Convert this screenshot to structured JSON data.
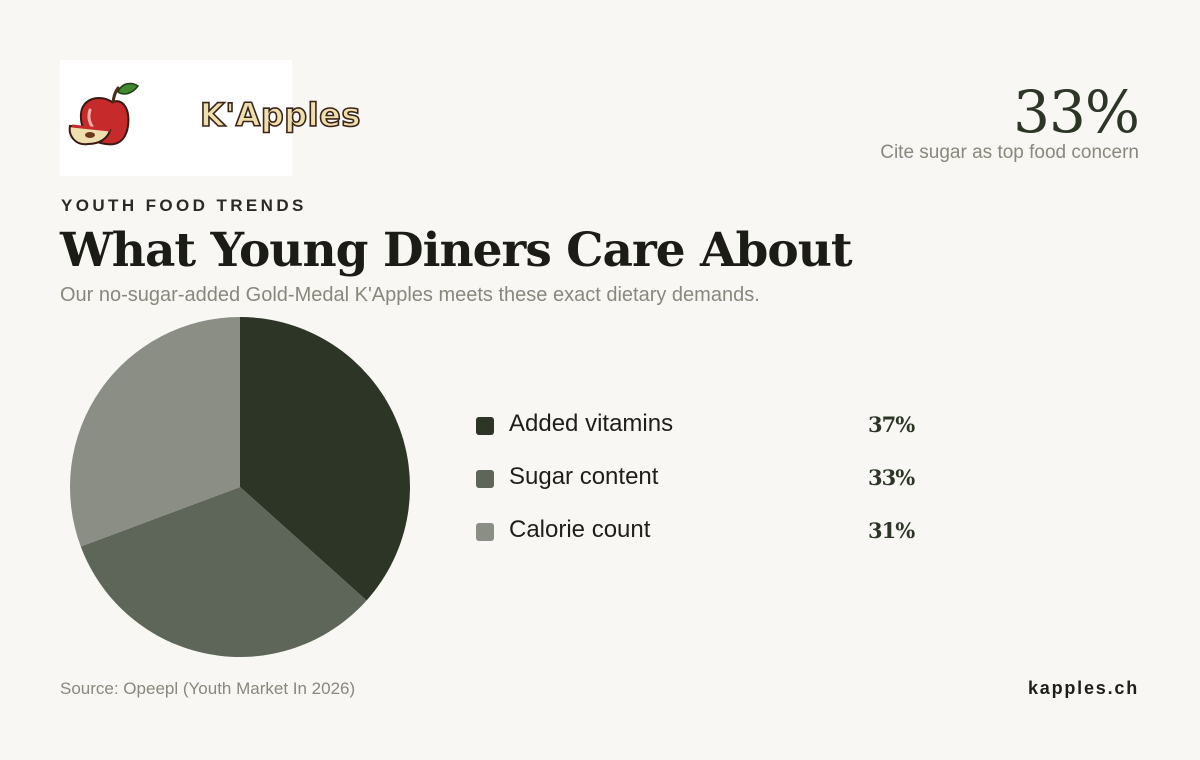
{
  "logo": {
    "text": "K'Apples"
  },
  "highlight": {
    "value": "33%",
    "caption": "Cite sugar as top food concern"
  },
  "header": {
    "eyebrow": "YOUTH FOOD TRENDS",
    "title": "What Young Diners Care About",
    "subtitle": "Our no-sugar-added Gold-Medal K'Apples meets these exact dietary demands."
  },
  "chart_data": {
    "type": "pie",
    "categories": [
      "Added vitamins",
      "Sugar content",
      "Calorie count"
    ],
    "values": [
      37,
      33,
      31
    ],
    "value_labels": [
      "37%",
      "33%",
      "31%"
    ],
    "colors": [
      "#2d3626",
      "#5e665a",
      "#8a8e85"
    ],
    "legend_position": "right"
  },
  "footer": {
    "source": "Source: Opeepl (Youth Market In 2026)",
    "site": "kapples.ch"
  }
}
